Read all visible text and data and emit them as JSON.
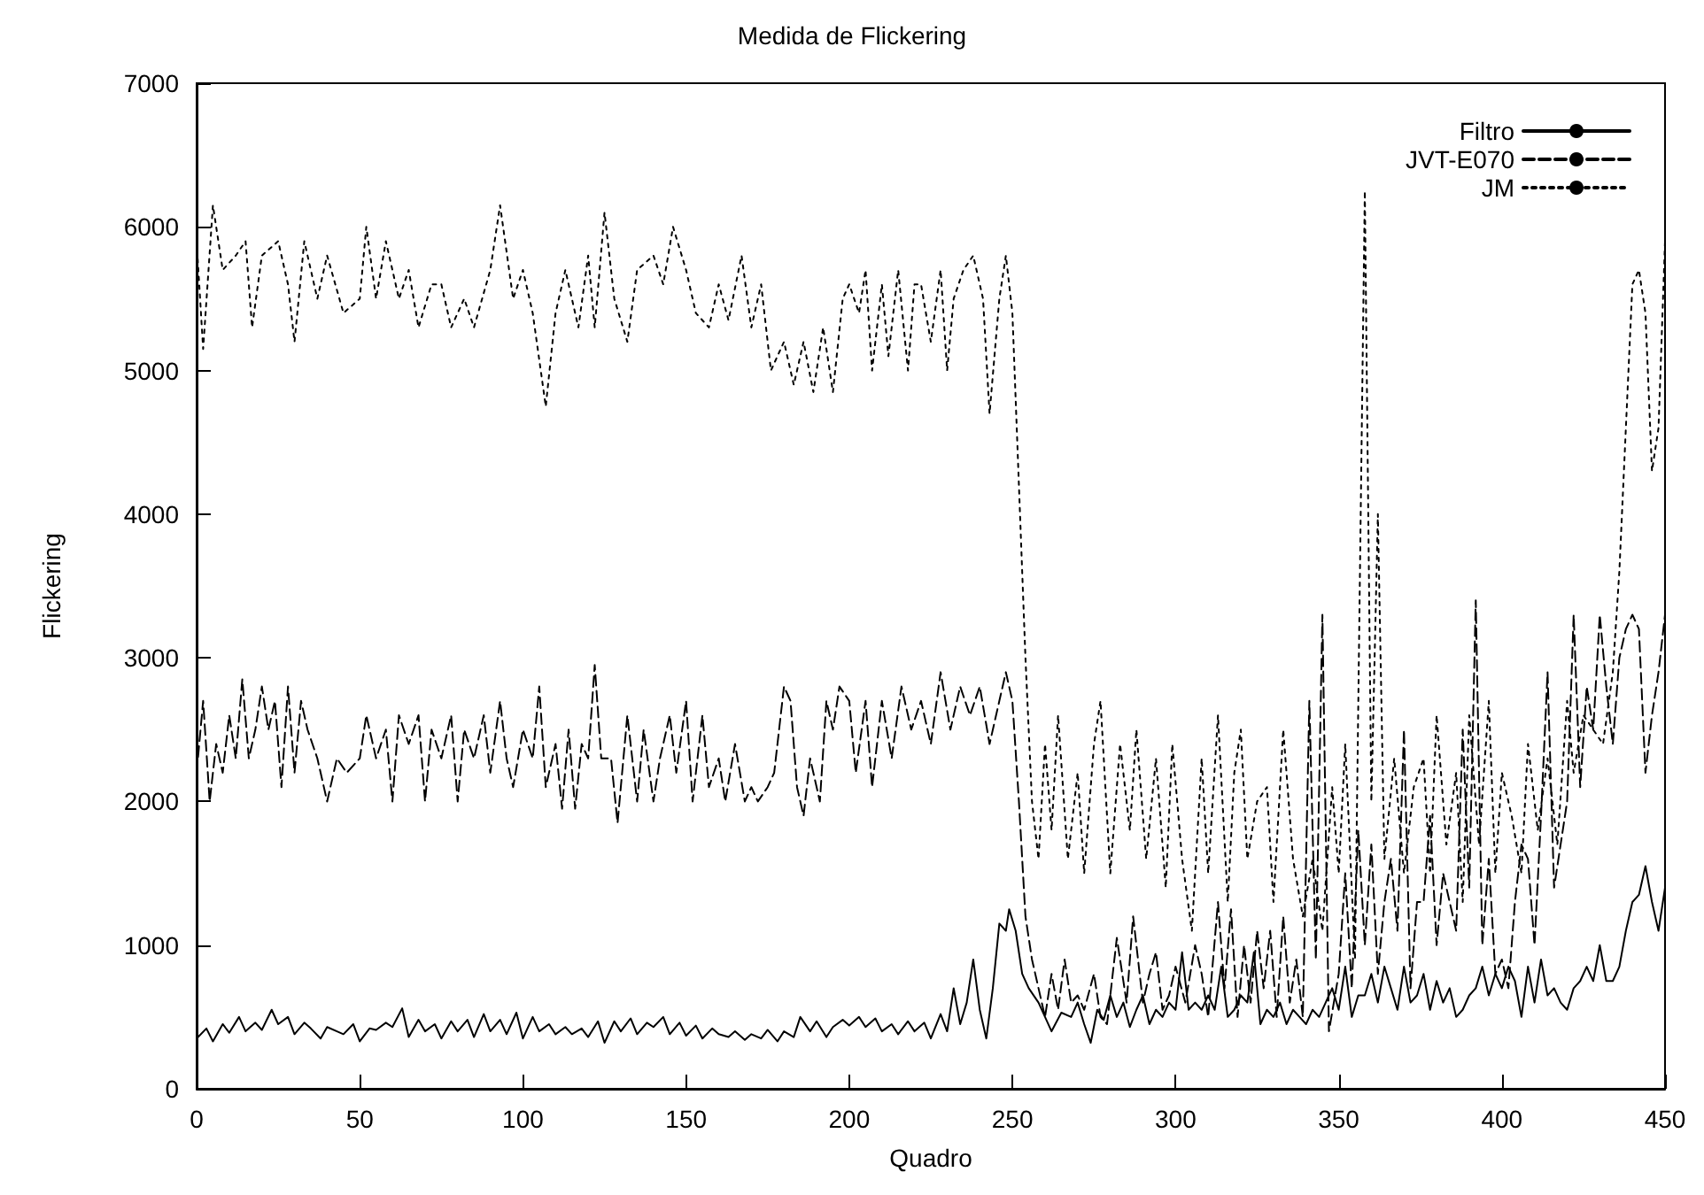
{
  "chart_data": {
    "type": "line",
    "title": "Medida de Flickering",
    "xlabel": "Quadro",
    "ylabel": "Flickering",
    "xlim": [
      0,
      450
    ],
    "xticks": [
      0,
      50,
      100,
      150,
      200,
      250,
      300,
      350,
      400,
      450
    ],
    "ylim": [
      0,
      7000
    ],
    "yticks": [
      0,
      1000,
      2000,
      3000,
      4000,
      5000,
      6000,
      7000
    ],
    "grid": false,
    "legend": "top right",
    "marker": "none",
    "series": [
      {
        "name": "Filtro",
        "color": "#000000",
        "line_style": "solid",
        "x": [
          0,
          3,
          5,
          8,
          10,
          13,
          15,
          18,
          20,
          23,
          25,
          28,
          30,
          33,
          35,
          38,
          40,
          43,
          45,
          48,
          50,
          53,
          55,
          58,
          60,
          63,
          65,
          68,
          70,
          73,
          75,
          78,
          80,
          83,
          85,
          88,
          90,
          93,
          95,
          98,
          100,
          103,
          105,
          108,
          110,
          113,
          115,
          118,
          120,
          123,
          125,
          128,
          130,
          133,
          135,
          138,
          140,
          143,
          145,
          148,
          150,
          153,
          155,
          158,
          160,
          163,
          165,
          168,
          170,
          173,
          175,
          178,
          180,
          183,
          185,
          188,
          190,
          193,
          195,
          198,
          200,
          203,
          205,
          208,
          210,
          213,
          215,
          218,
          220,
          223,
          225,
          228,
          230,
          232,
          234,
          236,
          238,
          240,
          242,
          244,
          246,
          248,
          249,
          251,
          253,
          255,
          258,
          260,
          262,
          265,
          268,
          270,
          272,
          274,
          276,
          278,
          280,
          282,
          284,
          286,
          288,
          290,
          292,
          294,
          296,
          298,
          300,
          302,
          304,
          306,
          308,
          310,
          312,
          314,
          316,
          318,
          320,
          322,
          324,
          326,
          328,
          330,
          332,
          334,
          336,
          338,
          340,
          342,
          344,
          346,
          348,
          350,
          352,
          354,
          356,
          358,
          360,
          362,
          364,
          366,
          368,
          370,
          372,
          374,
          376,
          378,
          380,
          382,
          384,
          386,
          388,
          390,
          392,
          394,
          396,
          398,
          400,
          402,
          404,
          406,
          408,
          410,
          412,
          414,
          416,
          418,
          420,
          422,
          424,
          426,
          428,
          430,
          432,
          434,
          436,
          438,
          440,
          442,
          444,
          446,
          448,
          450
        ],
        "values": [
          350,
          420,
          330,
          450,
          390,
          500,
          400,
          460,
          410,
          550,
          450,
          500,
          380,
          460,
          420,
          350,
          430,
          400,
          380,
          450,
          330,
          420,
          410,
          460,
          430,
          560,
          360,
          480,
          400,
          450,
          350,
          470,
          400,
          480,
          360,
          520,
          400,
          480,
          380,
          530,
          350,
          500,
          400,
          450,
          380,
          430,
          380,
          420,
          360,
          470,
          320,
          470,
          400,
          490,
          380,
          460,
          430,
          500,
          380,
          460,
          370,
          440,
          350,
          420,
          380,
          360,
          400,
          340,
          380,
          350,
          410,
          330,
          400,
          360,
          500,
          400,
          470,
          360,
          430,
          480,
          440,
          500,
          430,
          490,
          400,
          450,
          380,
          470,
          400,
          460,
          350,
          520,
          400,
          700,
          450,
          600,
          900,
          550,
          350,
          700,
          1150,
          1100,
          1250,
          1100,
          800,
          700,
          600,
          500,
          400,
          530,
          500,
          600,
          450,
          320,
          550,
          480,
          650,
          500,
          600,
          430,
          550,
          650,
          450,
          550,
          500,
          600,
          550,
          950,
          550,
          600,
          550,
          650,
          550,
          850,
          500,
          550,
          650,
          600,
          950,
          450,
          550,
          500,
          600,
          450,
          550,
          500,
          450,
          550,
          500,
          600,
          700,
          550,
          850,
          500,
          650,
          650,
          800,
          600,
          850,
          700,
          550,
          850,
          600,
          650,
          800,
          550,
          750,
          600,
          700,
          500,
          550,
          650,
          700,
          850,
          650,
          800,
          700,
          850,
          750,
          500,
          850,
          600,
          900,
          650,
          700,
          600,
          550,
          700,
          750,
          850,
          750,
          1000,
          750,
          750,
          850,
          1100,
          1300,
          1350,
          1550,
          1300,
          1100,
          1400
        ]
      },
      {
        "name": "JVT-E070",
        "color": "#000000",
        "line_style": "dashed",
        "x": [
          0,
          2,
          4,
          6,
          8,
          10,
          12,
          14,
          16,
          18,
          20,
          22,
          24,
          26,
          28,
          30,
          32,
          34,
          37,
          40,
          43,
          46,
          50,
          52,
          55,
          58,
          60,
          62,
          65,
          68,
          70,
          72,
          75,
          78,
          80,
          82,
          85,
          88,
          90,
          93,
          95,
          97,
          100,
          103,
          105,
          107,
          110,
          112,
          114,
          116,
          118,
          120,
          122,
          124,
          127,
          129,
          132,
          135,
          137,
          140,
          142,
          145,
          147,
          150,
          152,
          155,
          157,
          160,
          162,
          165,
          168,
          170,
          172,
          175,
          177,
          180,
          182,
          184,
          186,
          188,
          191,
          193,
          195,
          197,
          200,
          202,
          205,
          207,
          210,
          213,
          216,
          219,
          222,
          225,
          228,
          231,
          234,
          237,
          240,
          243,
          246,
          248,
          250,
          252,
          254,
          256,
          258,
          260,
          262,
          264,
          266,
          268,
          270,
          272,
          275,
          277,
          279,
          282,
          285,
          287,
          290,
          292,
          294,
          296,
          298,
          300,
          303,
          306,
          308,
          310,
          313,
          315,
          317,
          319,
          321,
          323,
          325,
          327,
          329,
          331,
          333,
          335,
          337,
          339,
          341,
          343,
          345,
          347,
          350,
          352,
          354,
          356,
          358,
          360,
          362,
          364,
          366,
          368,
          370,
          372,
          374,
          376,
          378,
          380,
          382,
          384,
          386,
          388,
          390,
          392,
          394,
          396,
          398,
          400,
          402,
          404,
          406,
          408,
          410,
          412,
          414,
          416,
          418,
          420,
          422,
          424,
          426,
          428,
          430,
          432,
          434,
          436,
          438,
          440,
          442,
          444,
          446,
          448,
          450
        ],
        "values": [
          2200,
          2700,
          2000,
          2400,
          2200,
          2600,
          2300,
          2850,
          2300,
          2500,
          2800,
          2500,
          2700,
          2100,
          2800,
          2200,
          2700,
          2500,
          2300,
          2000,
          2300,
          2200,
          2300,
          2600,
          2300,
          2500,
          2000,
          2600,
          2400,
          2600,
          2000,
          2500,
          2300,
          2600,
          2000,
          2500,
          2300,
          2600,
          2200,
          2700,
          2300,
          2100,
          2500,
          2300,
          2800,
          2100,
          2400,
          1950,
          2500,
          1950,
          2400,
          2300,
          2950,
          2300,
          2300,
          1850,
          2600,
          2000,
          2500,
          2000,
          2300,
          2600,
          2200,
          2700,
          2000,
          2600,
          2100,
          2300,
          2000,
          2400,
          2000,
          2100,
          2000,
          2100,
          2200,
          2800,
          2700,
          2100,
          1900,
          2300,
          2000,
          2700,
          2500,
          2800,
          2700,
          2200,
          2700,
          2100,
          2700,
          2300,
          2800,
          2500,
          2700,
          2400,
          2900,
          2500,
          2800,
          2600,
          2800,
          2400,
          2700,
          2900,
          2700,
          2000,
          1200,
          900,
          700,
          500,
          800,
          550,
          900,
          600,
          650,
          550,
          800,
          500,
          450,
          1050,
          600,
          1200,
          600,
          800,
          950,
          550,
          650,
          850,
          600,
          1000,
          800,
          500,
          1300,
          700,
          1250,
          500,
          1000,
          600,
          1100,
          700,
          1100,
          500,
          1200,
          600,
          900,
          500,
          2700,
          900,
          3300,
          400,
          800,
          1500,
          700,
          1800,
          1000,
          1700,
          800,
          1300,
          1600,
          1100,
          2500,
          700,
          1300,
          1300,
          1900,
          1000,
          1500,
          1300,
          1100,
          2500,
          1400,
          3400,
          1000,
          1600,
          800,
          900,
          700,
          1300,
          1700,
          1600,
          1000,
          1900,
          2900,
          1400,
          1700,
          2000,
          3300,
          2100,
          2800,
          2500,
          3300,
          2800,
          2400,
          3000,
          3200,
          3300,
          3200,
          2200,
          2600,
          2900,
          3300
        ]
      },
      {
        "name": "JM",
        "color": "#000000",
        "line_style": "dotted",
        "x": [
          0,
          2,
          5,
          8,
          12,
          15,
          17,
          20,
          25,
          28,
          30,
          33,
          37,
          40,
          45,
          50,
          52,
          55,
          58,
          62,
          65,
          68,
          72,
          75,
          78,
          82,
          85,
          90,
          93,
          97,
          100,
          103,
          107,
          110,
          113,
          117,
          120,
          122,
          125,
          128,
          132,
          135,
          140,
          143,
          146,
          150,
          153,
          157,
          160,
          163,
          167,
          170,
          173,
          176,
          180,
          183,
          186,
          189,
          192,
          195,
          198,
          200,
          203,
          205,
          207,
          210,
          212,
          215,
          218,
          220,
          222,
          225,
          228,
          230,
          232,
          235,
          238,
          241,
          243,
          246,
          248,
          250,
          252,
          254,
          256,
          258,
          260,
          262,
          264,
          267,
          270,
          272,
          275,
          277,
          280,
          283,
          286,
          288,
          291,
          294,
          297,
          299,
          302,
          305,
          308,
          310,
          313,
          316,
          318,
          320,
          322,
          325,
          328,
          330,
          333,
          336,
          339,
          342,
          345,
          348,
          350,
          352,
          355,
          358,
          360,
          362,
          364,
          367,
          370,
          373,
          376,
          378,
          380,
          383,
          386,
          388,
          390,
          393,
          396,
          398,
          400,
          403,
          406,
          408,
          411,
          414,
          417,
          420,
          422,
          425,
          428,
          431,
          434,
          436,
          438,
          440,
          442,
          444,
          446,
          448,
          450
        ],
        "values": [
          5900,
          5150,
          6150,
          5700,
          5800,
          5900,
          5300,
          5800,
          5900,
          5600,
          5200,
          5900,
          5500,
          5800,
          5400,
          5500,
          6000,
          5500,
          5900,
          5500,
          5700,
          5300,
          5600,
          5600,
          5300,
          5500,
          5300,
          5700,
          6150,
          5500,
          5700,
          5400,
          4750,
          5400,
          5700,
          5300,
          5800,
          5300,
          6100,
          5500,
          5200,
          5700,
          5800,
          5600,
          6000,
          5700,
          5400,
          5300,
          5600,
          5350,
          5800,
          5300,
          5600,
          5000,
          5200,
          4900,
          5200,
          4850,
          5300,
          4850,
          5500,
          5600,
          5400,
          5700,
          5000,
          5600,
          5100,
          5700,
          5000,
          5600,
          5600,
          5200,
          5700,
          5000,
          5500,
          5700,
          5800,
          5500,
          4700,
          5500,
          5800,
          5400,
          4200,
          3000,
          2000,
          1600,
          2400,
          1800,
          2600,
          1600,
          2200,
          1500,
          2400,
          2700,
          1500,
          2400,
          1800,
          2500,
          1600,
          2300,
          1400,
          2400,
          1600,
          1100,
          2300,
          1500,
          2600,
          1300,
          2200,
          2500,
          1600,
          2000,
          2100,
          1300,
          2500,
          1600,
          1200,
          1600,
          1100,
          2100,
          1500,
          2400,
          900,
          6250,
          2000,
          4000,
          1600,
          2300,
          1500,
          2100,
          2300,
          1500,
          2600,
          1700,
          2200,
          1300,
          2600,
          1700,
          2700,
          1500,
          2200,
          1900,
          1500,
          2400,
          1800,
          2300,
          1700,
          2700,
          2200,
          2600,
          2500,
          2400,
          2900,
          3600,
          4600,
          5600,
          5700,
          5400,
          4300,
          4600,
          5900
        ]
      }
    ]
  }
}
